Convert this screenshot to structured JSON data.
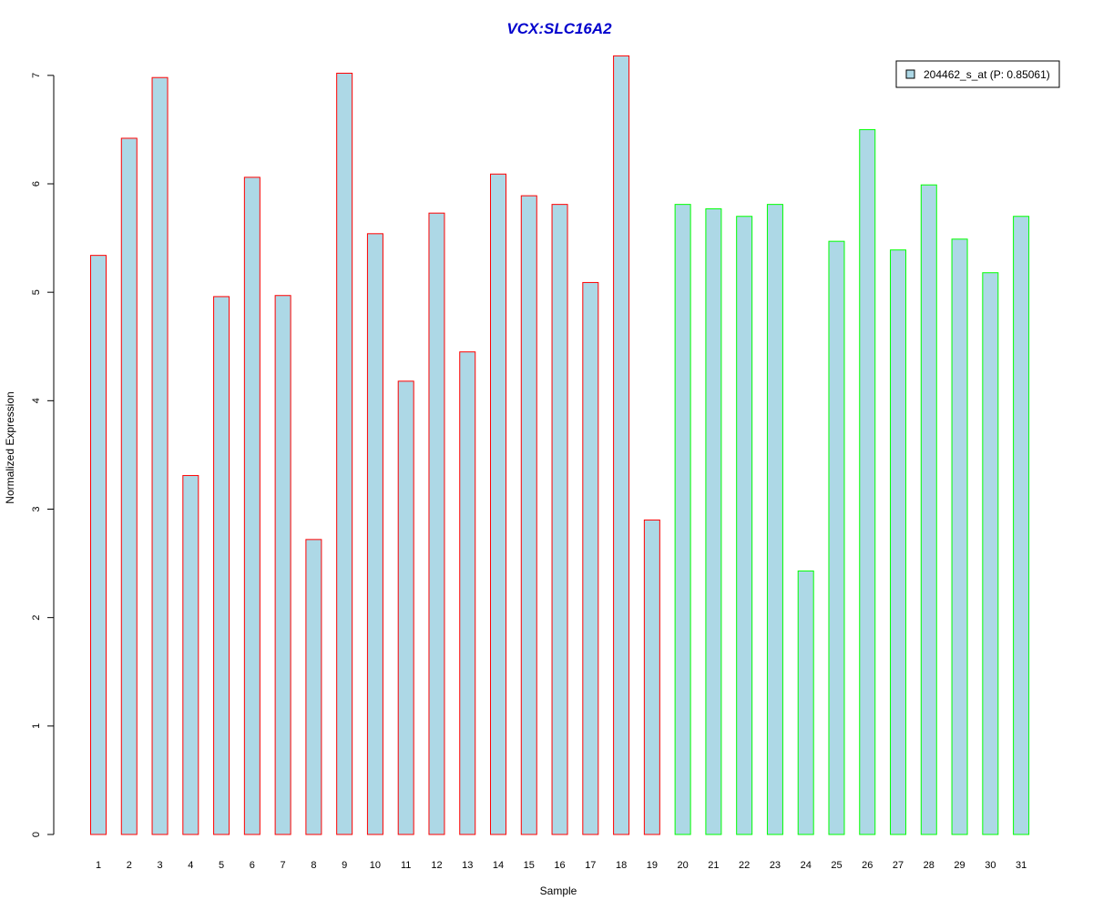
{
  "chart_data": {
    "type": "bar",
    "title": "VCX:SLC16A2",
    "xlabel": "Sample",
    "ylabel": "Normalized Expression",
    "categories": [
      "1",
      "2",
      "3",
      "4",
      "5",
      "6",
      "7",
      "8",
      "9",
      "10",
      "11",
      "12",
      "13",
      "14",
      "15",
      "16",
      "17",
      "18",
      "19",
      "20",
      "21",
      "22",
      "23",
      "24",
      "25",
      "26",
      "27",
      "28",
      "29",
      "30",
      "31"
    ],
    "series": [
      {
        "name": "204462_s_at (P: 0.85061)",
        "values": [
          5.34,
          6.42,
          6.98,
          3.31,
          4.96,
          6.06,
          4.97,
          2.72,
          7.02,
          5.54,
          4.18,
          5.73,
          4.45,
          6.09,
          5.89,
          5.81,
          5.09,
          7.18,
          2.9,
          5.81,
          5.77,
          5.7,
          5.81,
          2.43,
          5.47,
          6.5,
          5.39,
          5.99,
          5.49,
          5.18,
          5.7
        ]
      }
    ],
    "group_border_colors": [
      "#ff0000",
      "#ff0000",
      "#ff0000",
      "#ff0000",
      "#ff0000",
      "#ff0000",
      "#ff0000",
      "#ff0000",
      "#ff0000",
      "#ff0000",
      "#ff0000",
      "#ff0000",
      "#ff0000",
      "#ff0000",
      "#ff0000",
      "#ff0000",
      "#ff0000",
      "#ff0000",
      "#ff0000",
      "#00ff00",
      "#00ff00",
      "#00ff00",
      "#00ff00",
      "#00ff00",
      "#00ff00",
      "#00ff00",
      "#00ff00",
      "#00ff00",
      "#00ff00",
      "#00ff00",
      "#00ff00"
    ],
    "yticks": [
      "0",
      "1",
      "2",
      "3",
      "4",
      "5",
      "6",
      "7"
    ],
    "ylim": [
      0,
      7.2
    ],
    "grid": false,
    "legend_position": "top-right",
    "colors": {
      "bar_fill": "#add8e6",
      "title": "#0000cd",
      "axis": "#000000"
    }
  }
}
